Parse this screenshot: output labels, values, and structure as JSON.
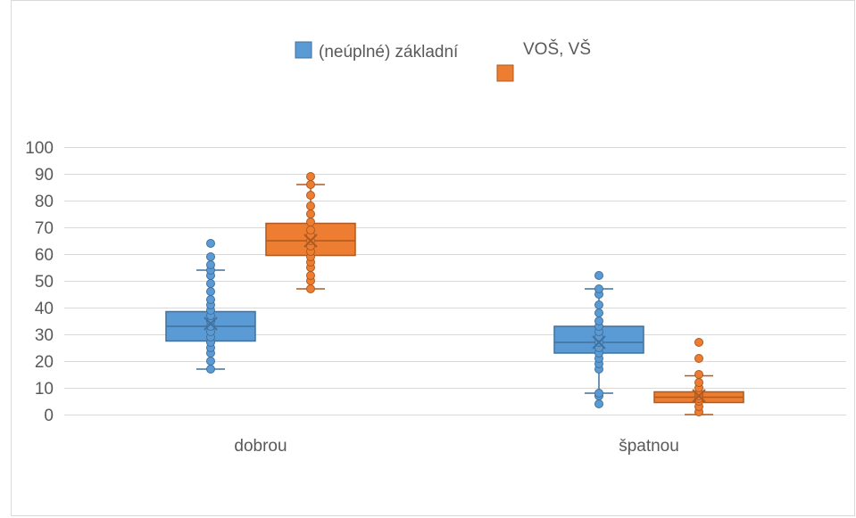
{
  "chart_data": {
    "type": "boxplot",
    "title": "",
    "xlabel": "",
    "ylabel": "",
    "ylim": [
      0,
      100
    ],
    "yticks": [
      0,
      10,
      20,
      30,
      40,
      50,
      60,
      70,
      80,
      90,
      100
    ],
    "categories": [
      "dobrou",
      "špatnou"
    ],
    "grid": true,
    "legend_position": "top",
    "series": [
      {
        "name": "(neúplné) základní",
        "color": "#5b9bd5",
        "border": "#41719c",
        "boxes": [
          {
            "category": "dobrou",
            "whisker_low": 17,
            "q1": 27.5,
            "median": 33,
            "q3": 38.5,
            "whisker_high": 54,
            "mean": 34,
            "points": [
              17,
              20,
              23,
              25,
              27,
              29,
              31,
              33,
              35,
              37,
              39,
              41,
              43,
              46,
              49,
              52,
              54,
              56,
              59,
              64
            ]
          },
          {
            "category": "špatnou",
            "whisker_low": 8,
            "q1": 23,
            "median": 27,
            "q3": 33,
            "whisker_high": 47,
            "mean": 27,
            "points": [
              4,
              7,
              8,
              17,
              19,
              21,
              23,
              25,
              27,
              29,
              31,
              33,
              35,
              38,
              41,
              45,
              47,
              52
            ]
          }
        ]
      },
      {
        "name": "VOŠ, VŠ",
        "color": "#ed7d31",
        "border": "#ae5a21",
        "boxes": [
          {
            "category": "dobrou",
            "whisker_low": 47,
            "q1": 59.5,
            "median": 65,
            "q3": 71.5,
            "whisker_high": 86,
            "mean": 65,
            "points": [
              47,
              50,
              52,
              55,
              57,
              59,
              61,
              63,
              65,
              67,
              69,
              72,
              75,
              78,
              82,
              86,
              89
            ]
          },
          {
            "category": "špatnou",
            "whisker_low": 0,
            "q1": 4.5,
            "median": 6.5,
            "q3": 8.5,
            "whisker_high": 14.5,
            "mean": 7,
            "points": [
              1,
              3,
              5,
              6,
              7,
              8,
              10,
              12,
              15,
              21,
              27
            ]
          }
        ]
      }
    ]
  }
}
